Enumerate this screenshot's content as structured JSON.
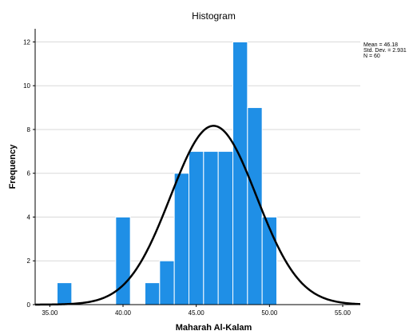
{
  "chart_data": {
    "type": "bar",
    "title": "Histogram",
    "xlabel": "Maharah Al-Kalam",
    "ylabel": "Frequency",
    "xlim": [
      34.0,
      56.2
    ],
    "ylim": [
      0,
      12.6
    ],
    "x_ticks": [
      "35.00",
      "40.00",
      "45.00",
      "50.00",
      "55.00"
    ],
    "x_tick_values": [
      35,
      40,
      45,
      50,
      55
    ],
    "y_ticks": [
      "0",
      "2",
      "4",
      "6",
      "8",
      "10",
      "12"
    ],
    "y_tick_values": [
      0,
      2,
      4,
      6,
      8,
      10,
      12
    ],
    "bin_width": 1,
    "bins": [
      {
        "start": 35.5,
        "end": 36.5,
        "value": 1
      },
      {
        "start": 39.5,
        "end": 40.5,
        "value": 4
      },
      {
        "start": 41.5,
        "end": 42.5,
        "value": 1
      },
      {
        "start": 42.5,
        "end": 43.5,
        "value": 2
      },
      {
        "start": 43.5,
        "end": 44.5,
        "value": 6
      },
      {
        "start": 44.5,
        "end": 45.5,
        "value": 7
      },
      {
        "start": 45.5,
        "end": 46.5,
        "value": 7
      },
      {
        "start": 46.5,
        "end": 47.5,
        "value": 7
      },
      {
        "start": 47.5,
        "end": 48.5,
        "value": 12
      },
      {
        "start": 48.5,
        "end": 49.5,
        "value": 9
      },
      {
        "start": 49.5,
        "end": 50.5,
        "value": 4
      }
    ],
    "normal_curve": {
      "mean": 46.18,
      "std_dev": 2.931,
      "n": 60
    },
    "stats_lines": [
      "Mean = 46.18",
      "Std. Dev. = 2.931",
      "N = 60"
    ],
    "grid": "horizontal",
    "colors": {
      "bar": "#1f8fe6",
      "bar_edge": "#ffffff",
      "curve": "#000000",
      "grid": "#d9d9d9",
      "axis": "#000000"
    }
  }
}
